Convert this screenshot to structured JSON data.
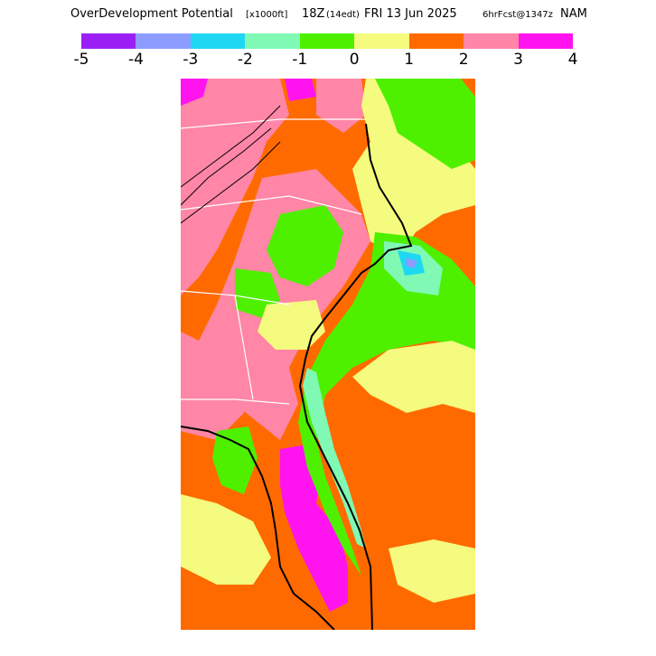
{
  "header": {
    "field_name": "OverDevelopment Potential",
    "units": "[x1000ft]",
    "valid_time": "18Z",
    "local_time": "(14edt)",
    "date": "FRI 13 Jun 2025",
    "forecast_info": "6hrFcst@1347z",
    "model": "NAM"
  },
  "legend": {
    "tick_labels": [
      "-5",
      "-4",
      "-3",
      "-2",
      "-1",
      "0",
      "1",
      "2",
      "3",
      "4"
    ],
    "bins": [
      {
        "range": [
          -5,
          -4
        ],
        "color": "#9b1ff5"
      },
      {
        "range": [
          -4,
          -3
        ],
        "color": "#8c9cff"
      },
      {
        "range": [
          -3,
          -2
        ],
        "color": "#1ed8f3"
      },
      {
        "range": [
          -2,
          -1
        ],
        "color": "#7ff9b4"
      },
      {
        "range": [
          -1,
          0
        ],
        "color": "#4ef000"
      },
      {
        "range": [
          0,
          1
        ],
        "color": "#f4fb7e"
      },
      {
        "range": [
          1,
          2
        ],
        "color": "#ff6a00"
      },
      {
        "range": [
          2,
          3
        ],
        "color": "#ff86a6"
      },
      {
        "range": [
          3,
          4
        ],
        "color": "#ff14ef"
      }
    ]
  },
  "map": {
    "region": "Southeast US",
    "colors": {
      "orange": "#ff6a00",
      "pink": "#ff86a6",
      "magenta": "#ff14ef",
      "yellow": "#f4fb7e",
      "green": "#4ef000",
      "mint": "#7ff9b4",
      "cyan": "#1ed8f3",
      "blue": "#8c9cff",
      "coast": "#000000",
      "border": "#ffffff"
    }
  }
}
